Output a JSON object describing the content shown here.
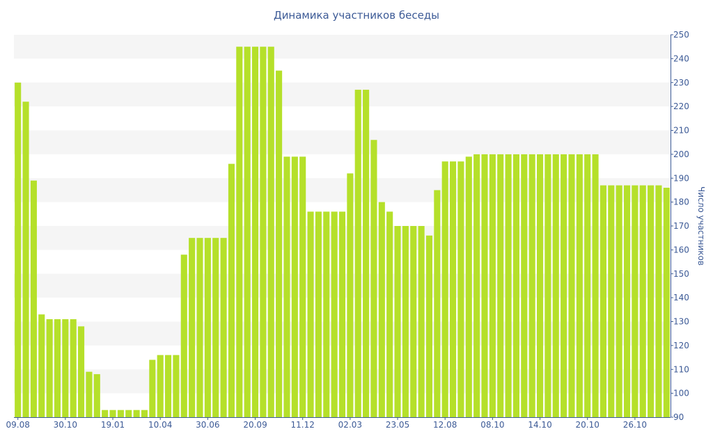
{
  "chart_data": {
    "type": "bar",
    "title": "Динамика участников беседы",
    "ylabel": "Число участников",
    "xlabel": "",
    "ylim": [
      90,
      250
    ],
    "y_ticks": [
      90,
      100,
      110,
      120,
      130,
      140,
      150,
      160,
      170,
      180,
      190,
      200,
      210,
      220,
      230,
      240,
      250
    ],
    "y_axis_position": "right",
    "grid": "alternating horizontal bands",
    "x_tick_labels": [
      {
        "index": 0,
        "label": "09.08"
      },
      {
        "index": 6,
        "label": "30.10"
      },
      {
        "index": 12,
        "label": "19.01"
      },
      {
        "index": 18,
        "label": "10.04"
      },
      {
        "index": 24,
        "label": "30.06"
      },
      {
        "index": 30,
        "label": "20.09"
      },
      {
        "index": 36,
        "label": "11.12"
      },
      {
        "index": 42,
        "label": "02.03"
      },
      {
        "index": 48,
        "label": "23.05"
      },
      {
        "index": 54,
        "label": "12.08"
      },
      {
        "index": 60,
        "label": "08.10"
      },
      {
        "index": 66,
        "label": "14.10"
      },
      {
        "index": 72,
        "label": "20.10"
      },
      {
        "index": 78,
        "label": "26.10"
      }
    ],
    "values": [
      230,
      222,
      189,
      133,
      131,
      131,
      131,
      131,
      128,
      109,
      108,
      93,
      93,
      93,
      93,
      93,
      93,
      114,
      116,
      116,
      116,
      158,
      165,
      165,
      165,
      165,
      165,
      196,
      245,
      245,
      245,
      245,
      245,
      235,
      199,
      199,
      199,
      176,
      176,
      176,
      176,
      176,
      192,
      227,
      227,
      206,
      180,
      176,
      170,
      170,
      170,
      170,
      166,
      185,
      197,
      197,
      197,
      199,
      200,
      200,
      200,
      200,
      200,
      200,
      200,
      200,
      200,
      200,
      200,
      200,
      200,
      200,
      200,
      200,
      187,
      187,
      187,
      187,
      187,
      187,
      187,
      187,
      186
    ],
    "colors": {
      "bar": "#b5e02a",
      "text": "#3c5a96",
      "band": "#f5f5f5",
      "axis": "#3c5a96"
    }
  }
}
